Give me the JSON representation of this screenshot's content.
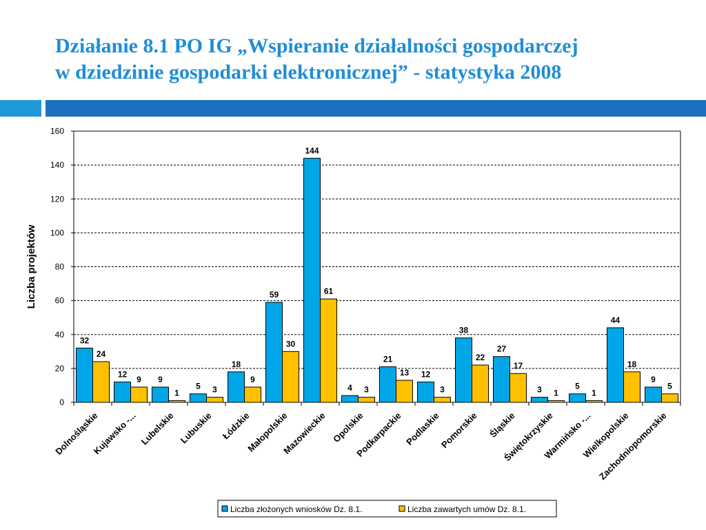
{
  "slide": {
    "title_line1": "Działanie 8.1 PO IG „Wspieranie działalności gospodarczej",
    "title_line2": "w dziedzinie gospodarki elektronicznej”  - statystyka 2008"
  },
  "colors": {
    "title": "#1f8ed6",
    "accent_bar_light": "#1f9ad9",
    "accent_bar_dark": "#1d6fc0",
    "series1": "#00a6e8",
    "series2": "#ffc000"
  },
  "chart_data": {
    "type": "bar",
    "title": "",
    "xlabel": "",
    "ylabel": "Liczba projektów",
    "ylim": [
      0,
      160
    ],
    "yticks": [
      0,
      20,
      40,
      60,
      80,
      100,
      120,
      140,
      160
    ],
    "grid": true,
    "legend_position": "bottom",
    "categories": [
      "Dolnośląskie",
      "Kujawsko -...",
      "Lubelskie",
      "Lubuskie",
      "Łódzkie",
      "Małopolskie",
      "Mazowieckie",
      "Opolskie",
      "Podkarpackie",
      "Podlaskie",
      "Pomorskie",
      "Śląskie",
      "Świętokrzyskie",
      "Warmińsko -...",
      "Wielkopolskie",
      "Zachodniopomorskie"
    ],
    "series": [
      {
        "name": "Liczba złożonych wniosków Dz. 8.1.",
        "color": "#00a6e8",
        "values": [
          32,
          12,
          9,
          5,
          18,
          59,
          144,
          4,
          21,
          12,
          38,
          27,
          3,
          5,
          44,
          9
        ]
      },
      {
        "name": "Liczba zawartych umów Dz.  8.1.",
        "color": "#ffc000",
        "values": [
          24,
          9,
          1,
          3,
          9,
          30,
          61,
          3,
          13,
          3,
          22,
          17,
          1,
          1,
          18,
          5
        ]
      }
    ]
  }
}
